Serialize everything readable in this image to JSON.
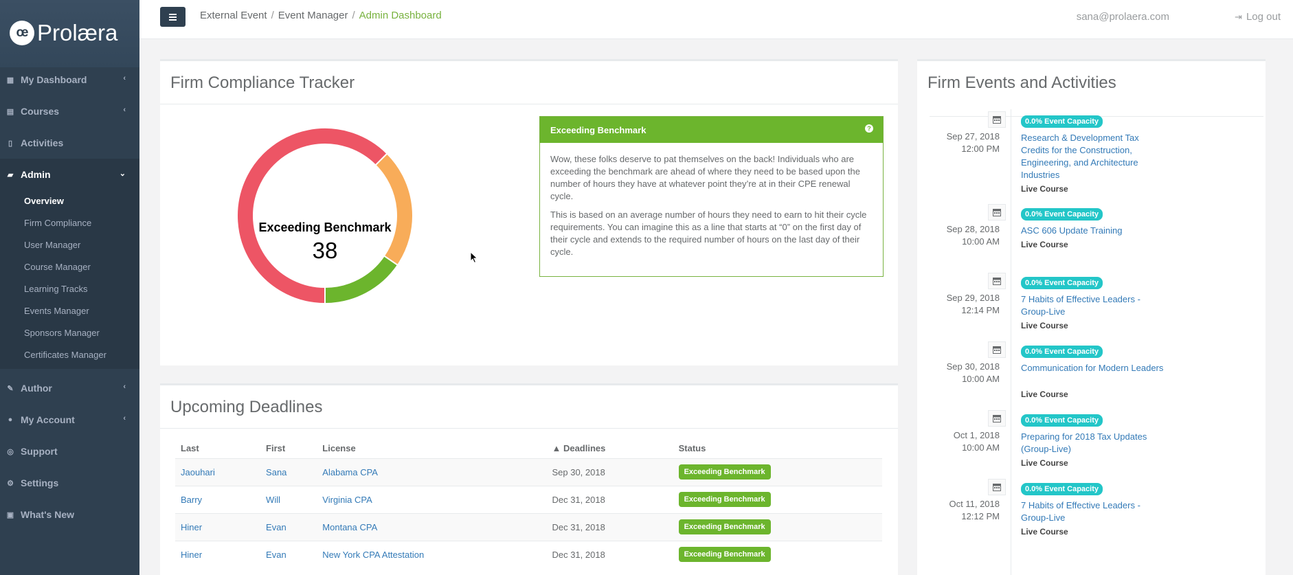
{
  "brand": {
    "mark": "œ",
    "name": "Prolæra"
  },
  "sidebar": {
    "items": [
      {
        "label": "My Dashboard",
        "icon": "dashboard-icon"
      },
      {
        "label": "Courses",
        "icon": "book-icon"
      },
      {
        "label": "Activities",
        "icon": "file-icon"
      },
      {
        "label": "Admin",
        "icon": "briefcase-icon"
      },
      {
        "label": "Author",
        "icon": "edit-icon"
      },
      {
        "label": "My Account",
        "icon": "user-icon"
      },
      {
        "label": "Support",
        "icon": "lifebuoy-icon"
      },
      {
        "label": "Settings",
        "icon": "gear-icon"
      },
      {
        "label": "What's New",
        "icon": "newspaper-icon"
      }
    ],
    "admin_sub": [
      "Overview",
      "Firm Compliance",
      "User Manager",
      "Course Manager",
      "Learning Tracks",
      "Events Manager",
      "Sponsors Manager",
      "Certificates Manager"
    ]
  },
  "header": {
    "breadcrumbs": [
      "External Event",
      "Event Manager",
      "Admin Dashboard"
    ],
    "user_email": "sana@prolaera.com",
    "logout_label": "Log out"
  },
  "compliance": {
    "title": "Firm Compliance Tracker",
    "center_label": "Exceeding Benchmark",
    "center_value": "38",
    "segments": [
      {
        "name": "red",
        "fraction": 0.625,
        "color": "#ed5565"
      },
      {
        "name": "orange",
        "fraction": 0.22,
        "color": "#f8ac59"
      },
      {
        "name": "green",
        "fraction": 0.155,
        "color": "#6cb52d"
      }
    ],
    "info_title": "Exceeding Benchmark",
    "info_p1": "Wow, these folks deserve to pat themselves on the back! Individuals who are exceeding the benchmark are ahead of where they need to be based upon the number of hours they have at whatever point they’re at in their CPE renewal cycle.",
    "info_p2": "This is based on an average number of hours they need to earn to hit their cycle requirements. You can imagine this as a line that starts at “0” on the first day of their cycle and extends to the required number of hours on the last day of their cycle."
  },
  "deadlines": {
    "title": "Upcoming Deadlines",
    "columns": [
      "Last",
      "First",
      "License",
      "▲ Deadlines",
      "Status"
    ],
    "rows": [
      {
        "last": "Jaouhari",
        "first": "Sana",
        "license": "Alabama CPA",
        "deadline": "Sep 30, 2018",
        "status": "Exceeding Benchmark"
      },
      {
        "last": "Barry",
        "first": "Will",
        "license": "Virginia CPA",
        "deadline": "Dec 31, 2018",
        "status": "Exceeding Benchmark"
      },
      {
        "last": "Hiner",
        "first": "Evan",
        "license": "Montana CPA",
        "deadline": "Dec 31, 2018",
        "status": "Exceeding Benchmark"
      },
      {
        "last": "Hiner",
        "first": "Evan",
        "license": "New York CPA Attestation",
        "deadline": "Dec 31, 2018",
        "status": "Exceeding Benchmark"
      }
    ]
  },
  "events": {
    "title": "Firm Events and Activities",
    "items": [
      {
        "date": "Sep 27, 2018",
        "time": "12:00 PM",
        "capacity": "0.0% Event Capacity",
        "name": "Research & Development Tax Credits for the Construction, Engineering, and Architecture Industries",
        "type": "Live Course"
      },
      {
        "date": "Sep 28, 2018",
        "time": "10:00 AM",
        "capacity": "0.0% Event Capacity",
        "name": "ASC 606 Update Training",
        "type": "Live Course"
      },
      {
        "date": "Sep 29, 2018",
        "time": "12:14 PM",
        "capacity": "0.0% Event Capacity",
        "name": "7 Habits of Effective Leaders - Group-Live",
        "type": "Live Course"
      },
      {
        "date": "Sep 30, 2018",
        "time": "10:00 AM",
        "capacity": "0.0% Event Capacity",
        "name": "Communication for Modern Leaders",
        "type": "Live Course"
      },
      {
        "date": "Oct 1, 2018",
        "time": "10:00 AM",
        "capacity": "0.0% Event Capacity",
        "name": "Preparing for 2018 Tax Updates (Group-Live)",
        "type": "Live Course"
      },
      {
        "date": "Oct 11, 2018",
        "time": "12:12 PM",
        "capacity": "0.0% Event Capacity",
        "name": "7 Habits of Effective Leaders - Group-Live",
        "type": "Live Course"
      }
    ]
  }
}
